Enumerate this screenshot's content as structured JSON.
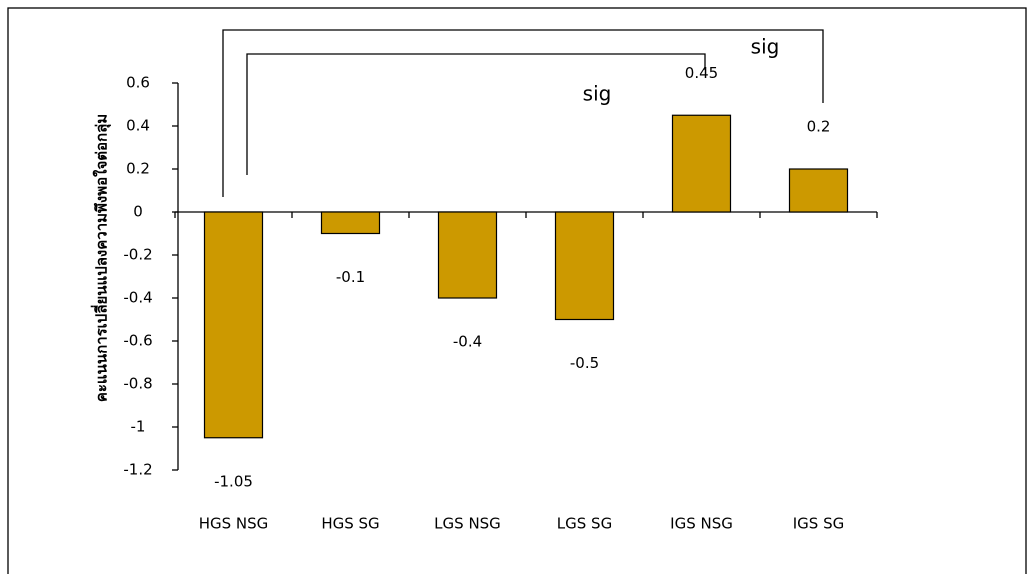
{
  "chart_data": {
    "type": "bar",
    "y_label": "คะแนนการเปลี่ยนแปลงความพึงพอใจต่อกลุ่ม",
    "categories": [
      "HGS NSG",
      "HGS SG",
      "LGS NSG",
      "LGS SG",
      "IGS NSG",
      "IGS SG"
    ],
    "values": [
      -1.05,
      -0.1,
      -0.4,
      -0.5,
      0.45,
      0.2
    ],
    "color": "#cc9900",
    "ylim": [
      -1.2,
      0.6
    ],
    "yticks": [
      -1.2,
      -1,
      -0.8,
      -0.6,
      -0.4,
      -0.2,
      0,
      0.2,
      0.4,
      0.6
    ],
    "annotations": [
      "sig",
      "sig"
    ]
  }
}
